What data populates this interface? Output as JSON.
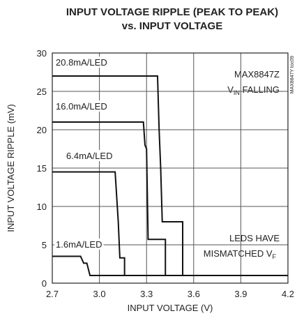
{
  "chart_data": {
    "type": "line",
    "title": [
      "INPUT VOLTAGE RIPPLE (PEAK TO PEAK)",
      "vs. INPUT VOLTAGE"
    ],
    "xlabel": "INPUT VOLTAGE (V)",
    "ylabel": "INPUT VOLTAGE RIPPLE (mV)",
    "xlim": [
      2.7,
      4.2
    ],
    "ylim": [
      0,
      30
    ],
    "xticks": [
      2.7,
      {
        "value": 3,
        "label": "3.0"
      },
      3.3,
      3.6,
      3.9,
      4.2
    ],
    "yticks": [
      0,
      5,
      10,
      15,
      20,
      25,
      30
    ],
    "grid": true,
    "series": [
      {
        "name": "20.8mA/LED",
        "color": "#111111",
        "x": [
          2.7,
          3.37,
          3.38,
          3.39,
          3.4,
          3.53,
          3.53,
          4.2
        ],
        "values": [
          27,
          27,
          20,
          15,
          8,
          8,
          1,
          1
        ]
      },
      {
        "name": "16.0mA/LED",
        "color": "#111111",
        "x": [
          2.7,
          3.28,
          3.29,
          3.3,
          3.31,
          3.42,
          3.42,
          4.2
        ],
        "values": [
          21,
          21,
          18,
          17.5,
          5.7,
          5.7,
          1,
          1
        ]
      },
      {
        "name": "6.4mA/LED",
        "color": "#111111",
        "x": [
          2.7,
          3.1,
          3.12,
          3.13,
          3.16,
          3.16,
          4.2
        ],
        "values": [
          14.5,
          14.5,
          8,
          3.3,
          3.3,
          1,
          1
        ]
      },
      {
        "name": "1.6mA/LED",
        "color": "#111111",
        "x": [
          2.7,
          2.88,
          2.9,
          2.92,
          2.93,
          2.94,
          4.2
        ],
        "values": [
          3.5,
          3.5,
          2.6,
          2.6,
          1.8,
          1,
          1
        ]
      }
    ],
    "annotations": [
      {
        "text": "MAX8847Z"
      },
      {
        "text": "V",
        "sub": "IN",
        "rest": " FALLING"
      },
      {
        "text": "LEDS HAVE"
      },
      {
        "text": "MISMATCHED V",
        "sub": "F"
      },
      {
        "text": "MAX8847Y toc09"
      }
    ]
  }
}
